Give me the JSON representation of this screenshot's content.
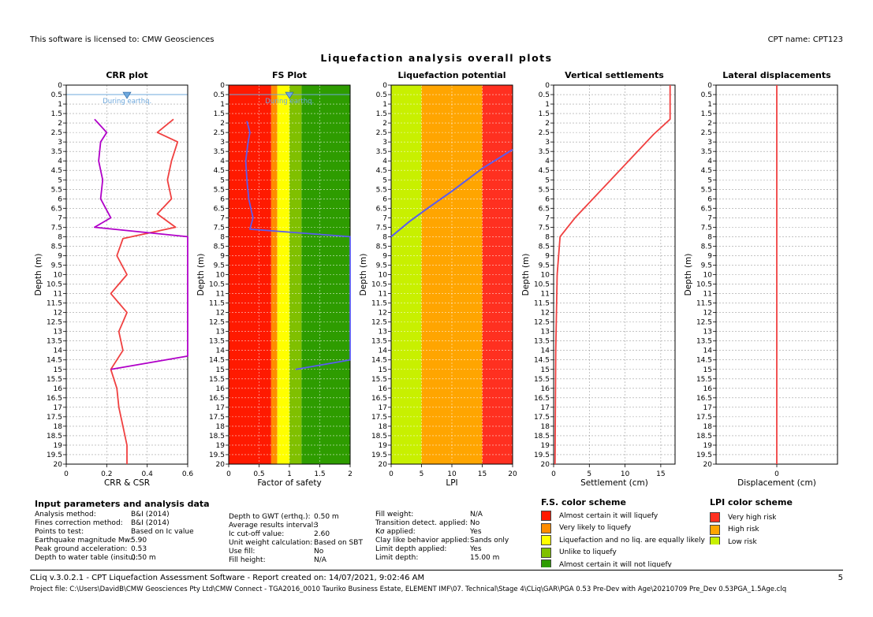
{
  "header": {
    "license": "This software is licensed to: CMW Geosciences",
    "cpt_name": "CPT name: CPT123"
  },
  "title": "Liquefaction analysis overall plots",
  "y_axis_label": "Depth (m)",
  "depth_ticks": [
    "0",
    "0.5",
    "1",
    "1.5",
    "2",
    "2.5",
    "3",
    "3.5",
    "4",
    "4.5",
    "5",
    "5.5",
    "6",
    "6.5",
    "7",
    "7.5",
    "8",
    "8.5",
    "9",
    "9.5",
    "10",
    "10.5",
    "11",
    "11.5",
    "12",
    "12.5",
    "13",
    "13.5",
    "14",
    "14.5",
    "15",
    "15.5",
    "16",
    "16.5",
    "17",
    "17.5",
    "18",
    "18.5",
    "19",
    "19.5",
    "20"
  ],
  "gwt_label": "During earthq.",
  "plots": {
    "crr": {
      "title": "CRR plot",
      "xlabel": "CRR & CSR",
      "xticks": [
        "0",
        "0.2",
        "0.4",
        "0.6"
      ]
    },
    "fs": {
      "title": "FS Plot",
      "xlabel": "Factor of safety",
      "xticks": [
        "0",
        "0.5",
        "1",
        "1.5",
        "2"
      ]
    },
    "lpi": {
      "title": "Liquefaction potential",
      "xlabel": "LPI",
      "xticks": [
        "0",
        "5",
        "10",
        "15",
        "20"
      ]
    },
    "settle": {
      "title": "Vertical settlements",
      "xlabel": "Settlement (cm)",
      "xticks": [
        "0",
        "5",
        "10",
        "15"
      ]
    },
    "lateral": {
      "title": "Lateral displacements",
      "xlabel": "Displacement (cm)",
      "xticks": [
        "0"
      ]
    }
  },
  "chart_data": [
    {
      "type": "line",
      "title": "CRR plot",
      "xlabel": "CRR & CSR",
      "ylabel": "Depth (m)",
      "xlim": [
        0,
        0.6
      ],
      "ylim": [
        20,
        0
      ],
      "series": [
        {
          "name": "CRR",
          "points": [
            [
              0.53,
              1.8
            ],
            [
              0.45,
              2.5
            ],
            [
              0.55,
              3
            ],
            [
              0.52,
              4
            ],
            [
              0.5,
              5
            ],
            [
              0.52,
              6
            ],
            [
              0.45,
              6.8
            ],
            [
              0.54,
              7.5
            ],
            [
              0.28,
              8.1
            ],
            [
              0.25,
              9
            ],
            [
              0.3,
              10
            ],
            [
              0.22,
              11
            ],
            [
              0.3,
              12
            ],
            [
              0.26,
              13
            ],
            [
              0.28,
              14
            ],
            [
              0.22,
              15
            ],
            [
              0.25,
              16
            ],
            [
              0.26,
              17
            ],
            [
              0.28,
              18
            ],
            [
              0.3,
              19
            ],
            [
              0.3,
              20
            ]
          ]
        },
        {
          "name": "CSR",
          "points": [
            [
              0.14,
              1.8
            ],
            [
              0.2,
              2.5
            ],
            [
              0.17,
              3
            ],
            [
              0.16,
              4
            ],
            [
              0.18,
              5
            ],
            [
              0.17,
              6
            ],
            [
              0.22,
              7
            ],
            [
              0.14,
              7.5
            ],
            [
              0.6,
              8
            ],
            [
              0.6,
              9.5
            ],
            [
              0.6,
              12
            ],
            [
              0.6,
              13
            ],
            [
              0.6,
              14.3
            ],
            [
              0.22,
              15
            ]
          ]
        }
      ]
    },
    {
      "type": "line",
      "title": "FS Plot",
      "xlabel": "Factor of safety",
      "ylabel": "Depth (m)",
      "xlim": [
        0,
        2
      ],
      "ylim": [
        20,
        0
      ],
      "bands": [
        {
          "from": 0,
          "to": 0.7,
          "color": "#ff1a00"
        },
        {
          "from": 0.7,
          "to": 0.8,
          "color": "#ff8c00"
        },
        {
          "from": 0.8,
          "to": 1.0,
          "color": "#ffff00"
        },
        {
          "from": 1.0,
          "to": 1.2,
          "color": "#80c000"
        },
        {
          "from": 1.2,
          "to": 2,
          "color": "#2e9c00"
        }
      ],
      "series": [
        {
          "name": "FS",
          "points": [
            [
              0.3,
              1.9
            ],
            [
              0.35,
              2.5
            ],
            [
              0.32,
              3
            ],
            [
              0.28,
              4
            ],
            [
              0.3,
              5
            ],
            [
              0.33,
              6
            ],
            [
              0.4,
              7
            ],
            [
              0.35,
              7.6
            ],
            [
              2,
              8
            ],
            [
              2,
              12
            ],
            [
              2,
              14.5
            ],
            [
              1.1,
              15
            ]
          ]
        }
      ]
    },
    {
      "type": "line",
      "title": "Liquefaction potential",
      "xlabel": "LPI",
      "ylabel": "Depth (m)",
      "xlim": [
        0,
        20
      ],
      "ylim": [
        20,
        0
      ],
      "bands": [
        {
          "from": 0,
          "to": 5,
          "color": "#c8f000"
        },
        {
          "from": 5,
          "to": 15,
          "color": "#ffa500"
        },
        {
          "from": 15,
          "to": 20,
          "color": "#ff3020"
        }
      ],
      "series": [
        {
          "name": "LPI",
          "points": [
            [
              20,
              3.4
            ],
            [
              15,
              4.4
            ],
            [
              10,
              5.6
            ],
            [
              6,
              6.5
            ],
            [
              3,
              7.2
            ],
            [
              0,
              8
            ]
          ]
        }
      ]
    },
    {
      "type": "line",
      "title": "Vertical settlements",
      "xlabel": "Settlement (cm)",
      "ylabel": "Depth (m)",
      "xlim": [
        0,
        17
      ],
      "ylim": [
        20,
        0
      ],
      "series": [
        {
          "name": "Settlement",
          "points": [
            [
              16.3,
              0
            ],
            [
              16.3,
              1.8
            ],
            [
              14,
              2.6
            ],
            [
              10,
              4.2
            ],
            [
              6,
              5.8
            ],
            [
              3,
              7
            ],
            [
              0.9,
              8
            ],
            [
              0.5,
              10
            ],
            [
              0.3,
              14
            ],
            [
              0.2,
              20
            ]
          ]
        }
      ]
    },
    {
      "type": "line",
      "title": "Lateral displacements",
      "xlabel": "Displacement (cm)",
      "ylabel": "Depth (m)",
      "xlim": [
        -1,
        1
      ],
      "ylim": [
        20,
        0
      ],
      "series": [
        {
          "name": "Displacement",
          "points": [
            [
              0,
              0
            ],
            [
              0,
              20
            ]
          ]
        }
      ]
    }
  ],
  "input": {
    "title": "Input parameters and analysis data",
    "col1": [
      {
        "label": "Analysis method:",
        "value": "B&I (2014)"
      },
      {
        "label": "Fines correction method:",
        "value": "B&I (2014)"
      },
      {
        "label": "Points to test:",
        "value": "Based on Ic value"
      },
      {
        "label": "Earthquake magnitude Mw:",
        "value": "5.90"
      },
      {
        "label": "Peak ground acceleration:",
        "value": "0.53"
      },
      {
        "label": "Depth to water table (insitu):",
        "value": "0.50 m"
      }
    ],
    "col2": [
      {
        "label": "Depth to GWT (erthq.):",
        "value": "0.50 m"
      },
      {
        "label": "Average results interval:",
        "value": "3"
      },
      {
        "label": "Ic cut-off value:",
        "value": "2.60"
      },
      {
        "label": "Unit weight calculation:",
        "value": "Based on SBT"
      },
      {
        "label": "Use fill:",
        "value": "No"
      },
      {
        "label": "Fill height:",
        "value": "N/A"
      }
    ],
    "col3": [
      {
        "label": "Fill weight:",
        "value": "N/A"
      },
      {
        "label": "Transition detect. applied:",
        "value": "No"
      },
      {
        "label": "Kσ applied:",
        "value": "Yes"
      },
      {
        "label": "Clay like behavior applied:",
        "value": "Sands only"
      },
      {
        "label": "Limit depth applied:",
        "value": "Yes"
      },
      {
        "label": "Limit depth:",
        "value": "15.00 m"
      }
    ]
  },
  "fs_legend": {
    "title": "F.S. color scheme",
    "items": [
      {
        "label": "Almost certain it will liquefy",
        "color": "#ff1a00"
      },
      {
        "label": "Very likely to liquefy",
        "color": "#ff8c00"
      },
      {
        "label": "Liquefaction and no liq. are equally likely",
        "color": "#ffff00"
      },
      {
        "label": "Unlike to liquefy",
        "color": "#80c000"
      },
      {
        "label": "Almost certain it will not liquefy",
        "color": "#2e9c00"
      }
    ]
  },
  "lpi_legend": {
    "title": "LPI color scheme",
    "items": [
      {
        "label": "Very high risk",
        "color": "#ff3020"
      },
      {
        "label": "High risk",
        "color": "#ffa500"
      },
      {
        "label": "Low risk",
        "color": "#c8f000"
      }
    ]
  },
  "footer": {
    "line1": "CLiq v.3.0.2.1 - CPT Liquefaction Assessment Software - Report created on: 14/07/2021, 9:02:46 AM",
    "page": "5",
    "line2": "Project file: C:\\Users\\DavidB\\CMW Geosciences Pty Ltd\\CMW Connect - TGA2016_0010 Tauriko Business Estate, ELEMENT IMF\\07. Technical\\Stage 4\\CLiq\\GAR\\PGA 0.53 Pre-Dev with Age\\20210709 Pre_Dev 0.53PGA_1.5Age.clq"
  }
}
